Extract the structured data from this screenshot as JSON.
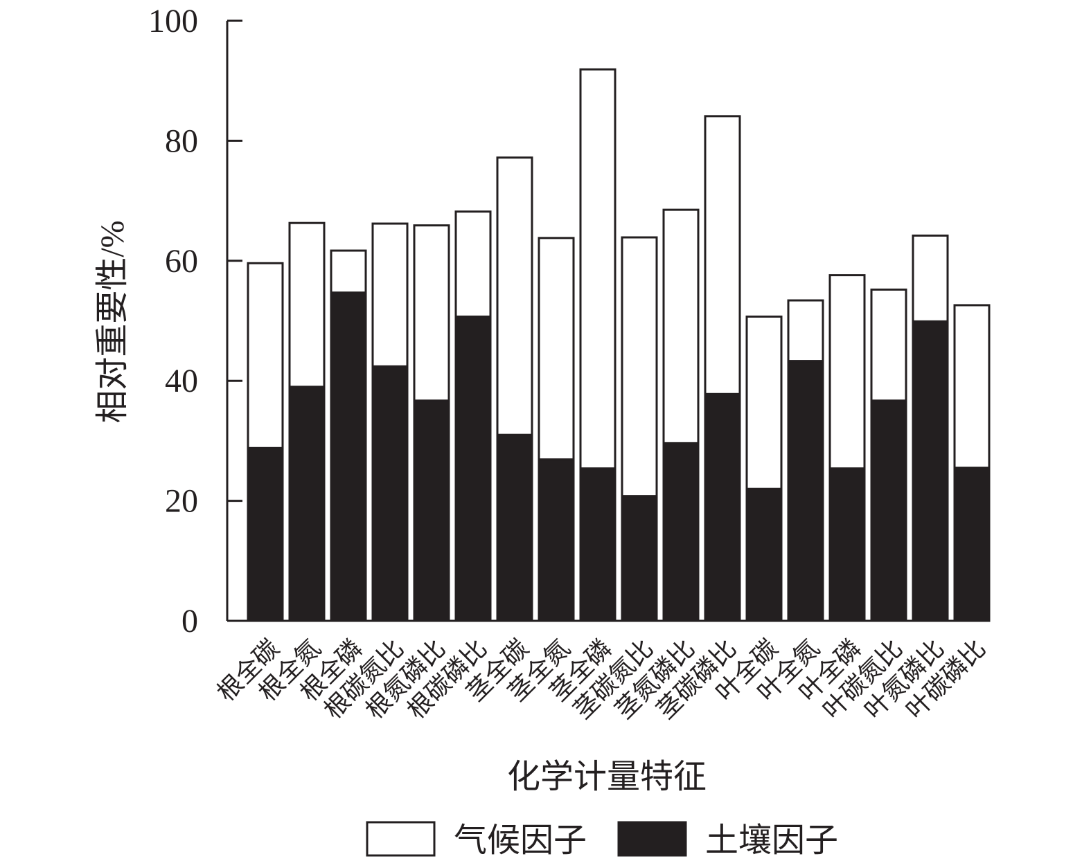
{
  "chart_data": {
    "type": "stacked_bar",
    "xlabel": "化学计量特征",
    "ylabel": "相对重要性/%",
    "categories": [
      "根全碳",
      "根全氮",
      "根全磷",
      "根碳氮比",
      "根氮磷比",
      "根碳磷比",
      "茎全碳",
      "茎全氮",
      "茎全磷",
      "茎碳氮比",
      "茎氮磷比",
      "茎碳磷比",
      "叶全碳",
      "叶全氮",
      "叶全磷",
      "叶碳氮比",
      "叶氮磷比",
      "叶碳磷比"
    ],
    "series": [
      {
        "name": "气候因子",
        "color": "#ffffff",
        "values": [
          30.8,
          27.3,
          7.0,
          23.8,
          29.2,
          17.5,
          46.2,
          36.9,
          66.5,
          43.1,
          38.9,
          46.3,
          28.7,
          10.1,
          32.2,
          18.5,
          14.3,
          27.1
        ]
      },
      {
        "name": "土壤因子",
        "color": "#231f20",
        "values": [
          28.8,
          39.0,
          54.7,
          42.4,
          36.7,
          50.7,
          31.0,
          26.9,
          25.4,
          20.8,
          29.6,
          37.8,
          22.0,
          43.3,
          25.4,
          36.7,
          49.9,
          25.5
        ]
      }
    ],
    "ylim": [
      0,
      100
    ],
    "yticks": [
      0,
      20,
      40,
      60,
      80,
      100
    ]
  }
}
